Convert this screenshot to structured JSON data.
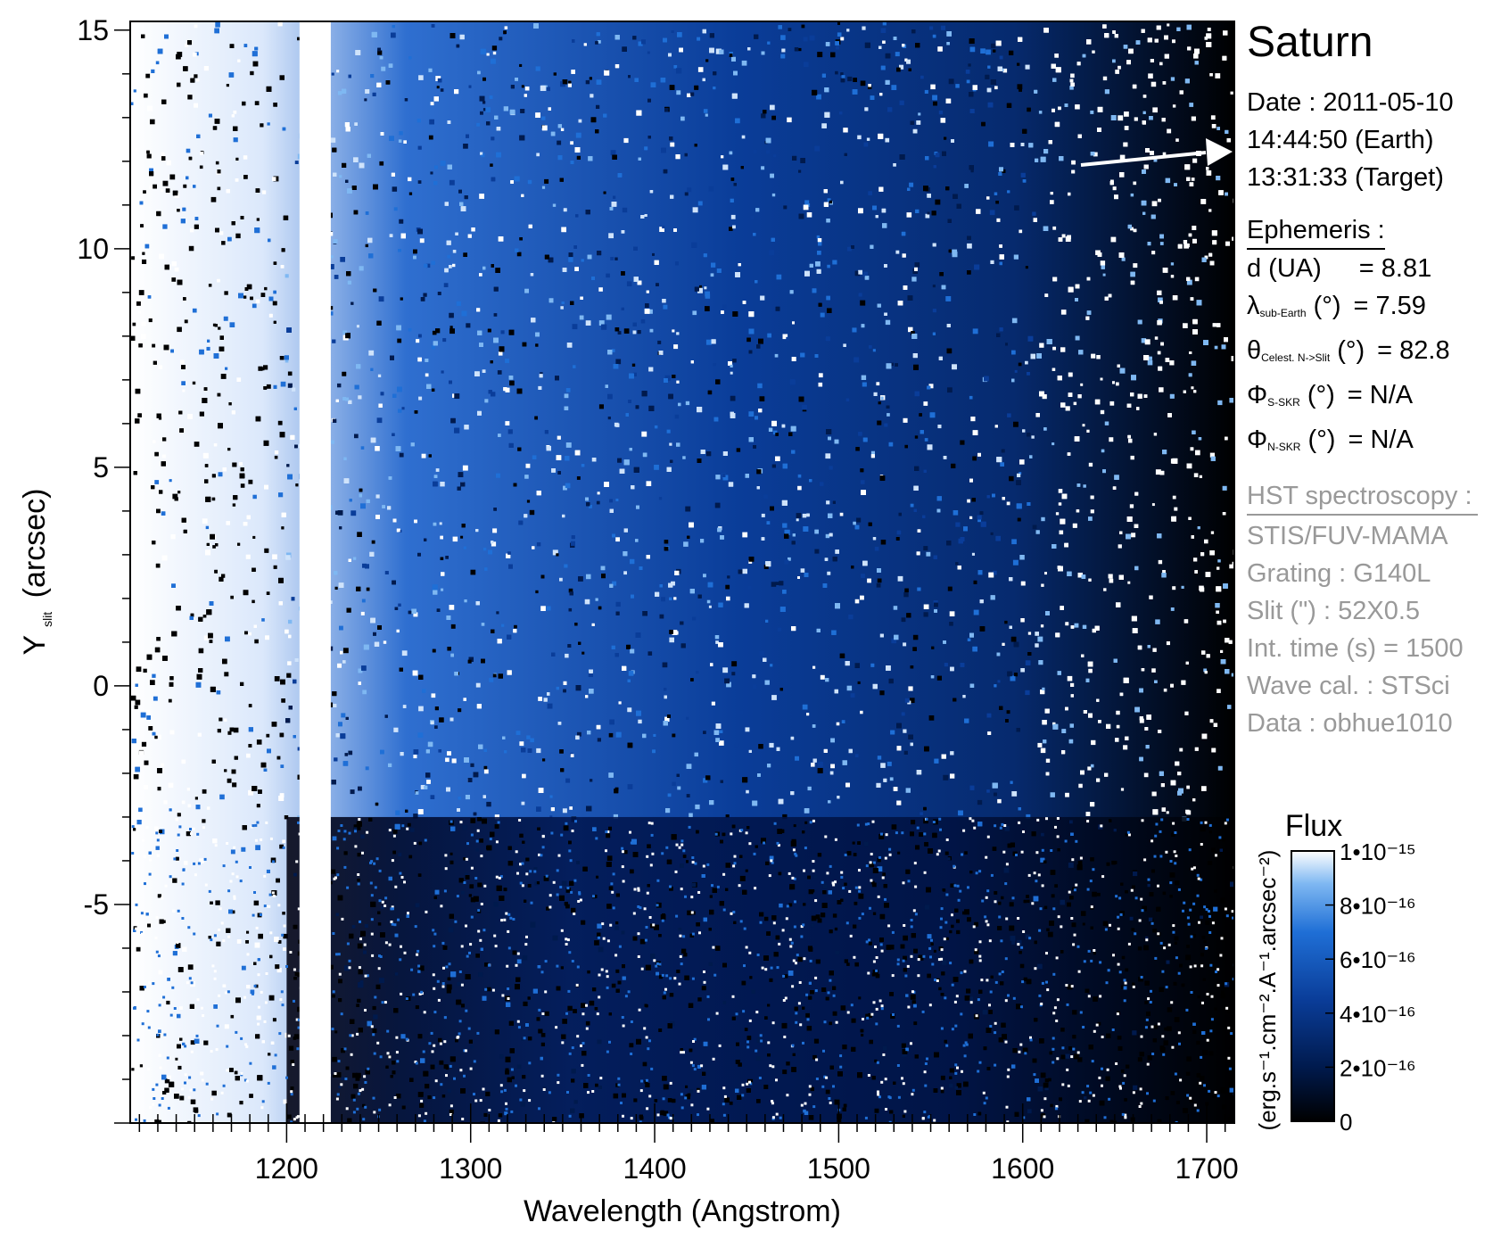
{
  "chart_data": {
    "type": "heatmap",
    "title": "",
    "xlabel": "Wavelength (Angstrom)",
    "ylabel_main": "Y",
    "ylabel_sub": "slit",
    "ylabel_unit": "(arcsec)",
    "xlim": [
      1115,
      1715
    ],
    "ylim": [
      -10,
      15.2
    ],
    "x_ticks": [
      1200,
      1300,
      1400,
      1500,
      1600,
      1700
    ],
    "x_tick_labels": [
      "1200",
      "1300",
      "1400",
      "1500",
      "1600",
      "1700"
    ],
    "y_ticks": [
      -5,
      0,
      5,
      10,
      15
    ],
    "y_tick_labels": [
      "-5",
      "0",
      "5",
      "10",
      "15"
    ],
    "bright_column_angstrom": [
      1207,
      1224
    ],
    "dim_region_below_arcsec": -3,
    "colorbar": {
      "title": "Flux",
      "unit_label": "(erg.s⁻¹.cm⁻².A⁻¹.arcsec⁻²)",
      "range": [
        0,
        1e-15
      ],
      "ticks": [
        {
          "value": 1e-15,
          "label": "1•10⁻¹⁵"
        },
        {
          "value": 8e-16,
          "label": "8•10⁻¹⁶"
        },
        {
          "value": 6e-16,
          "label": "6•10⁻¹⁶"
        },
        {
          "value": 4e-16,
          "label": "4•10⁻¹⁶"
        },
        {
          "value": 2e-16,
          "label": "2•10⁻¹⁶"
        },
        {
          "value": 0,
          "label": "0"
        }
      ],
      "colors": [
        "#000000",
        "#001a4d",
        "#0a3d99",
        "#1f6fd6",
        "#7fb8f2",
        "#ffffff"
      ]
    }
  },
  "panel": {
    "planet": "Saturn",
    "date": "Date : 2011-05-10",
    "time_earth": "14:44:50 (Earth)",
    "time_target": "13:31:33 (Target)",
    "ephemeris_header": "Ephemeris :",
    "ephemeris": [
      {
        "symbol": "d (UA)",
        "sub": "",
        "unit": "",
        "value": "= 8.81"
      },
      {
        "symbol": "λ",
        "sub": "sub-Earth",
        "unit": " (°)",
        "value": "= 7.59"
      },
      {
        "symbol": "θ",
        "sub": "Celest. N->Slit",
        "unit": " (°)",
        "value": "= 82.8"
      },
      {
        "symbol": "Φ",
        "sub": "S-SKR",
        "unit": " (°)",
        "value": "= N/A"
      },
      {
        "symbol": "Φ",
        "sub": "N-SKR",
        "unit": " (°)",
        "value": "= N/A"
      }
    ],
    "hst_header": "HST spectroscopy :",
    "hst": [
      "STIS/FUV-MAMA",
      "Grating : G140L",
      "Slit (\") : 52X0.5",
      "Int. time (s) = 1500",
      "Wave cal. : STSci",
      "Data : obhue1010"
    ]
  }
}
